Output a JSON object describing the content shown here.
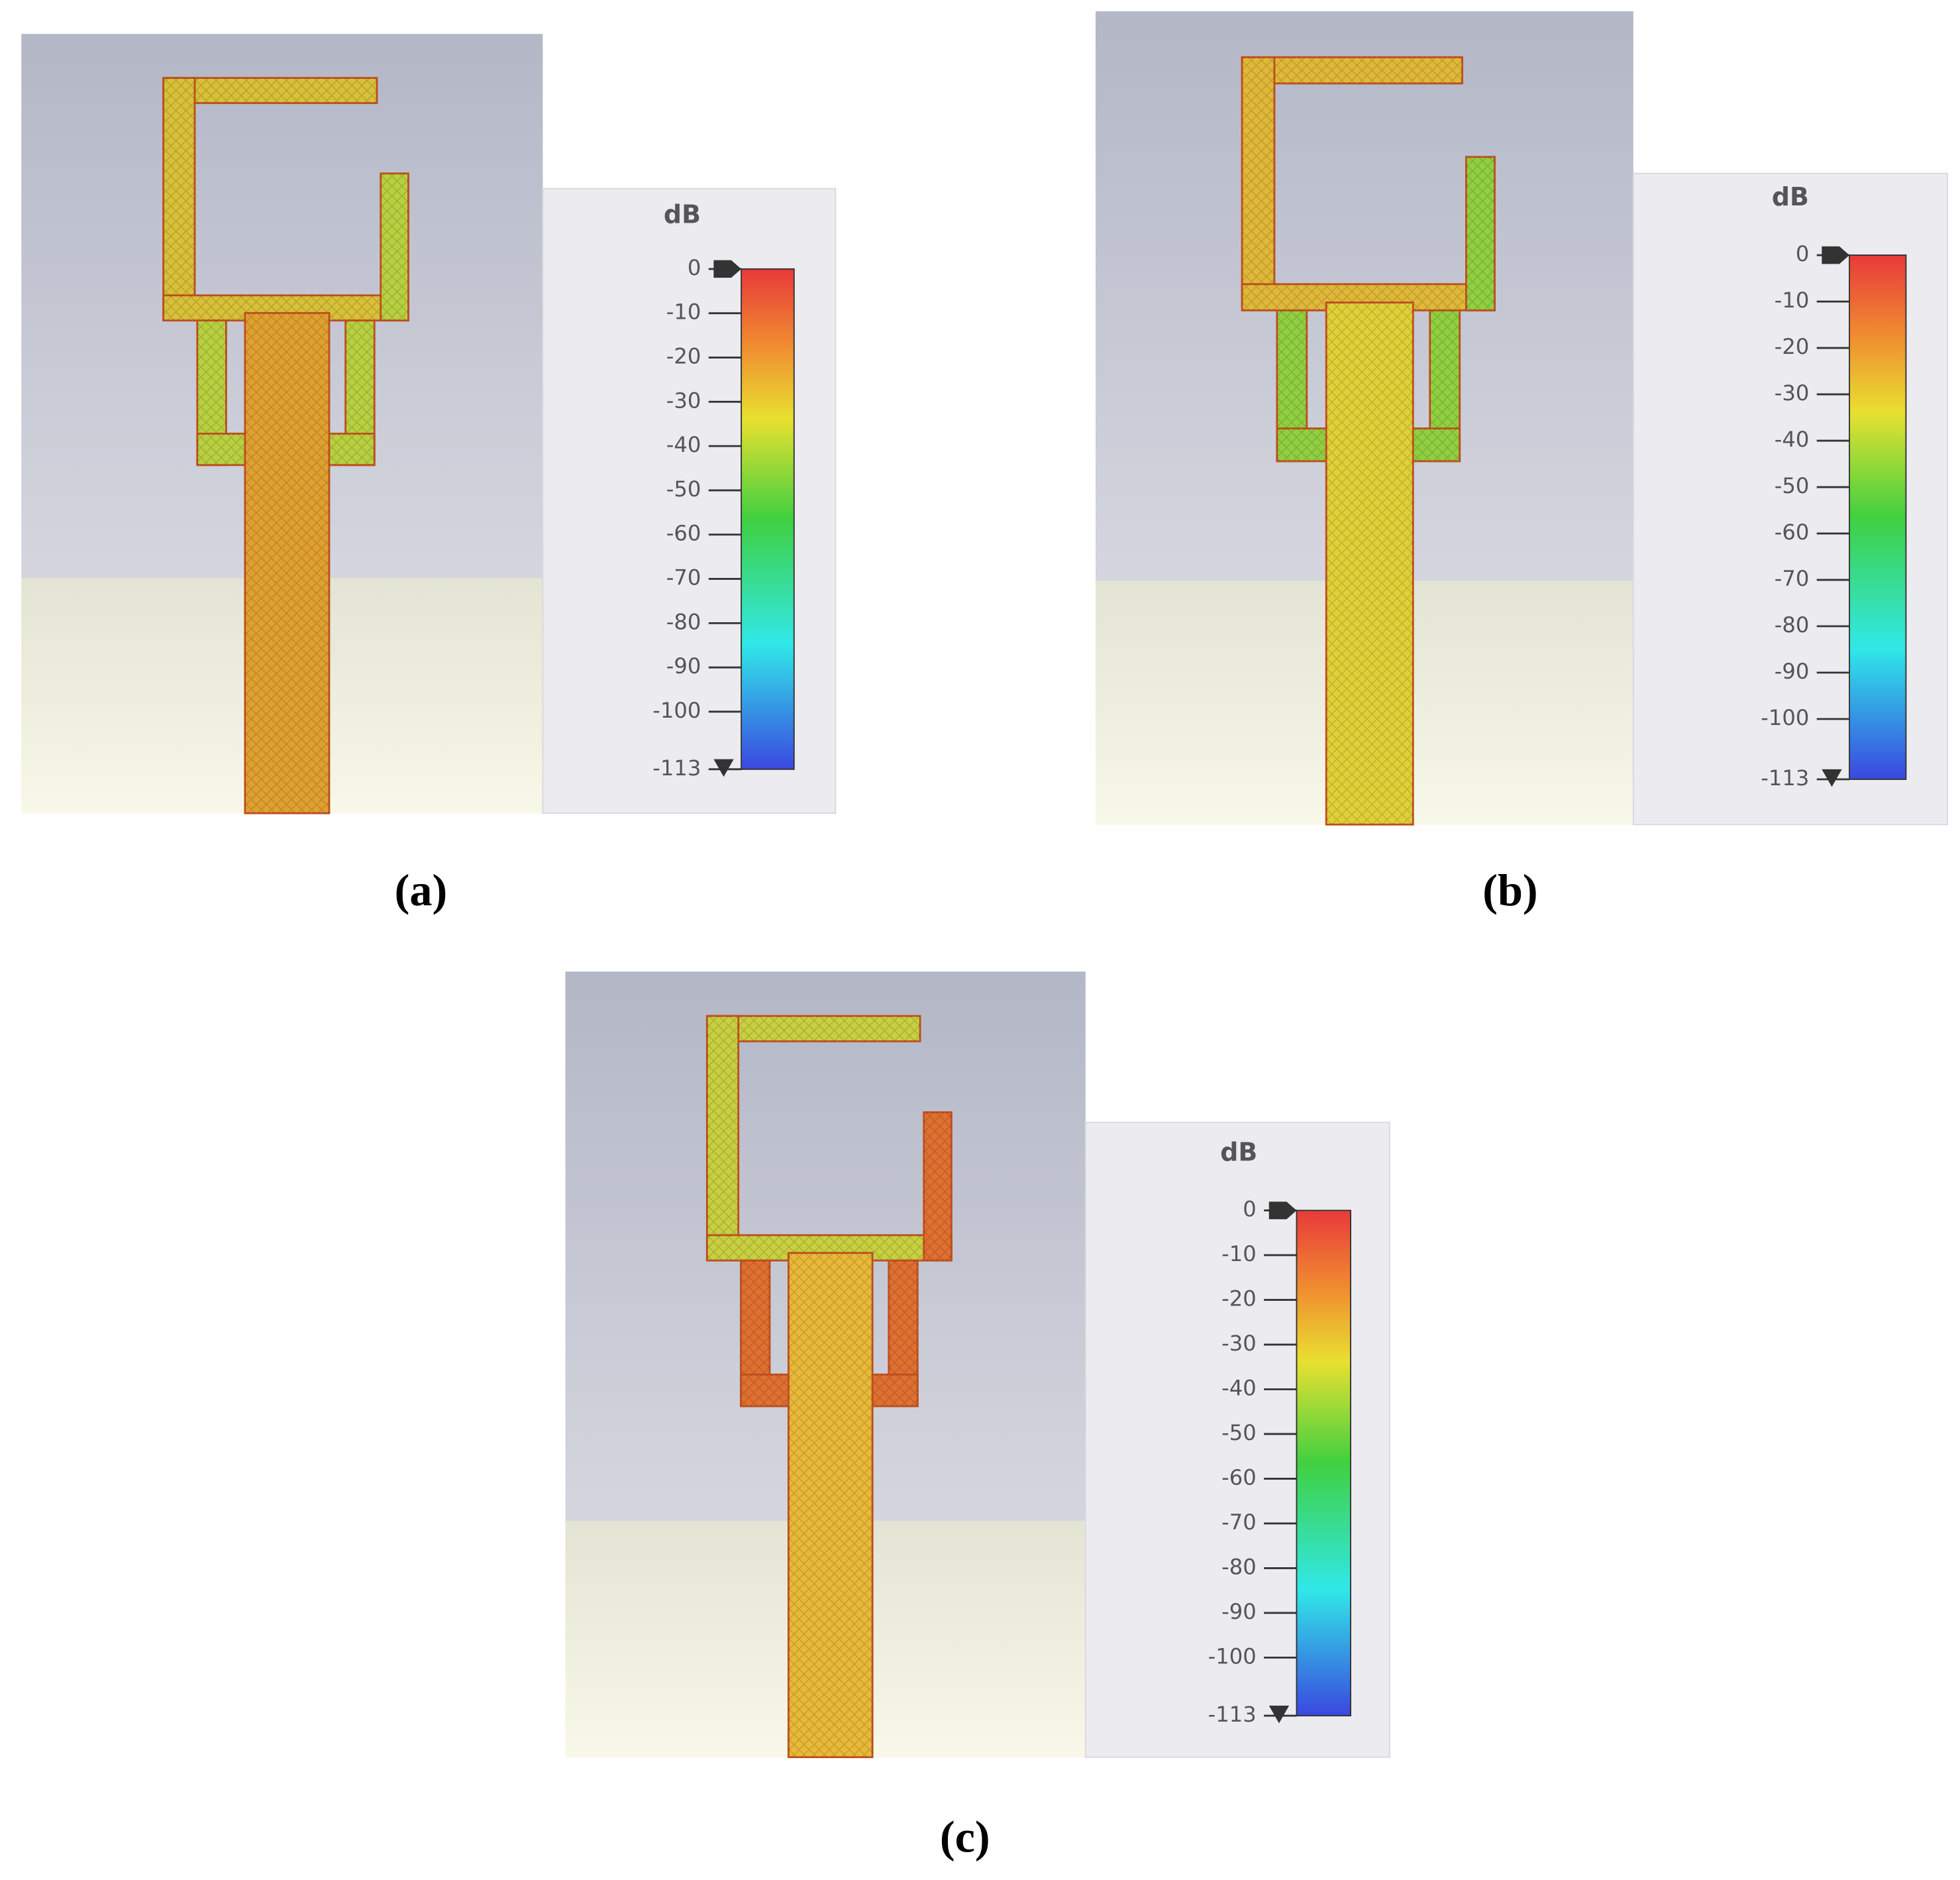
{
  "panels": [
    {
      "caption": "(a)",
      "colorbar": {
        "unit": "dB",
        "clim": [
          -113,
          0
        ],
        "ticks": [
          0,
          -10,
          -20,
          -30,
          -40,
          -50,
          -60,
          -70,
          -80,
          -90,
          -100,
          -113
        ]
      }
    },
    {
      "caption": "(b)",
      "colorbar": {
        "unit": "dB",
        "clim": [
          -113,
          0
        ],
        "ticks": [
          0,
          -10,
          -20,
          -30,
          -40,
          -50,
          -60,
          -70,
          -80,
          -90,
          -100,
          -113
        ]
      }
    },
    {
      "caption": "(c)",
      "colorbar": {
        "unit": "dB",
        "clim": [
          -113,
          0
        ],
        "ticks": [
          0,
          -10,
          -20,
          -30,
          -40,
          -50,
          -60,
          -70,
          -80,
          -90,
          -100,
          -113
        ]
      }
    }
  ]
}
